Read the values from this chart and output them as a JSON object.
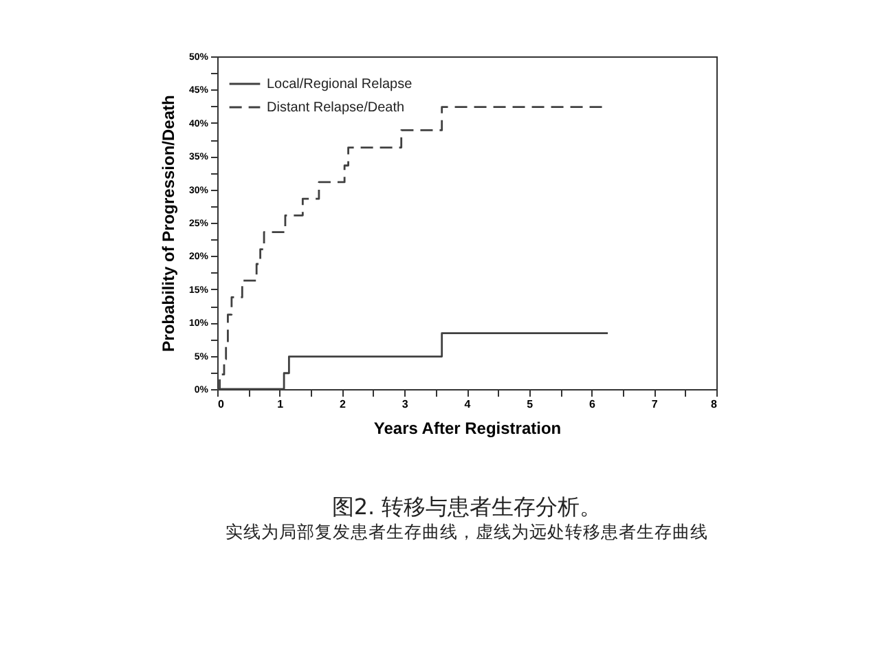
{
  "chart_data": {
    "type": "step",
    "title": "图2. 转移与患者生存分析。",
    "subtitle": "实线为局部复发患者生存曲线，虚线为远处转移患者生存曲线",
    "xlabel": "Years After Registration",
    "ylabel": "Probability of Progression/Death",
    "series": [
      {
        "name": "Local/Regional Relapse",
        "color": "#404040",
        "line_style": "solid",
        "x": [
          0.04,
          1.07,
          1.15,
          3.6,
          6.26
        ],
        "values": [
          0,
          2.4,
          4.9,
          8.4,
          8.4
        ]
      },
      {
        "name": "Distant Relapse/Death",
        "color": "#404040",
        "line_style": "dashed",
        "x": [
          0.0,
          0.04,
          0.11,
          0.14,
          0.17,
          0.23,
          0.4,
          0.63,
          0.69,
          0.75,
          1.09,
          1.37,
          1.63,
          2.04,
          2.1,
          2.95,
          3.6,
          6.18
        ],
        "values": [
          0,
          2.2,
          4.5,
          7.0,
          11.2,
          13.8,
          16.3,
          18.8,
          21.0,
          23.6,
          26.1,
          28.6,
          31.1,
          33.6,
          36.3,
          38.9,
          42.4,
          42.4
        ]
      }
    ],
    "xlim": [
      0,
      8
    ],
    "xticks": [
      0,
      {
        "value": 0.5,
        "label": null
      },
      1,
      {
        "value": 1.5,
        "label": null
      },
      2,
      {
        "value": 2.5,
        "label": null
      },
      3,
      {
        "value": 3.5,
        "label": null
      },
      4,
      {
        "value": 4.5,
        "label": null
      },
      5,
      {
        "value": 5.5,
        "label": null
      },
      6,
      {
        "value": 6.5,
        "label": null
      },
      7,
      {
        "value": 7.5,
        "label": null
      },
      8
    ],
    "ylim": [
      0,
      50
    ],
    "yticks": [
      {
        "value": 0,
        "label": "0%"
      },
      {
        "value": 2.5,
        "label": null
      },
      {
        "value": 5,
        "label": "5%"
      },
      {
        "value": 7.5,
        "label": null
      },
      {
        "value": 10,
        "label": "10%"
      },
      {
        "value": 12.5,
        "label": null
      },
      {
        "value": 15,
        "label": "15%"
      },
      {
        "value": 17.5,
        "label": null
      },
      {
        "value": 20,
        "label": "20%"
      },
      {
        "value": 22.5,
        "label": null
      },
      {
        "value": 25,
        "label": "25%"
      },
      {
        "value": 27.5,
        "label": null
      },
      {
        "value": 30,
        "label": "30%"
      },
      {
        "value": 32.5,
        "label": null
      },
      {
        "value": 35,
        "label": "35%"
      },
      {
        "value": 37.5,
        "label": null
      },
      {
        "value": 40,
        "label": "40%"
      },
      {
        "value": 42.5,
        "label": null
      },
      {
        "value": 45,
        "label": "45%"
      },
      {
        "value": 47.5,
        "label": null
      },
      {
        "value": 50,
        "label": "50%"
      }
    ],
    "grid": false,
    "legend": "top left"
  }
}
